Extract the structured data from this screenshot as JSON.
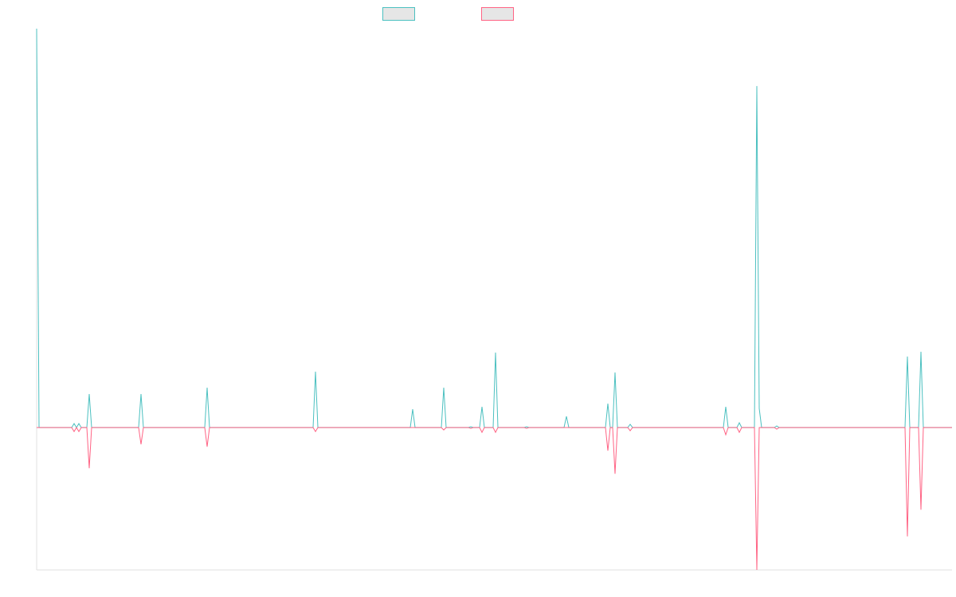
{
  "chart_data": {
    "type": "line",
    "x": [
      0,
      3,
      44,
      47,
      50,
      53,
      56,
      63,
      66,
      69,
      128,
      131,
      134,
      211,
      214,
      217,
      347,
      350,
      353,
      469,
      472,
      475,
      508,
      511,
      514,
      542,
      545,
      548,
      556,
      559,
      562,
      573,
      576,
      579,
      612,
      615,
      618,
      662,
      665,
      668,
      714,
      717,
      720,
      723,
      726,
      729,
      742,
      745,
      748,
      862,
      865,
      868,
      879,
      882,
      885,
      901,
      904,
      907,
      910,
      926,
      929,
      932,
      1090,
      1093,
      1096,
      1107,
      1110,
      1113,
      1149
    ],
    "series": [
      {
        "color": "#4bc0c0",
        "values": [
          100,
          0,
          0,
          1,
          0,
          1,
          0,
          0,
          8.4,
          0,
          0,
          8.4,
          0,
          0,
          10,
          0,
          0,
          14,
          0,
          0,
          4.6,
          0,
          0,
          10,
          0,
          0,
          0.2,
          0,
          0,
          5.2,
          0,
          0,
          18.8,
          0,
          0,
          0.2,
          0,
          0,
          2.8,
          0,
          0,
          6,
          0,
          0,
          13.8,
          0,
          0,
          0.8,
          0,
          0,
          5.2,
          0,
          0,
          1.2,
          0,
          0,
          85.6,
          4.8,
          0,
          0,
          0.4,
          0,
          0,
          17.8,
          0,
          0,
          19,
          0,
          0
        ]
      },
      {
        "color": "#ff6384",
        "values": [
          0,
          0,
          0,
          -1,
          0,
          -1,
          0,
          0,
          -10.2,
          0,
          0,
          -4.2,
          0,
          0,
          -4.8,
          0,
          0,
          -1,
          0,
          0,
          0,
          0,
          0,
          -0.6,
          0,
          0,
          -0.2,
          0,
          0,
          -1.2,
          0,
          0,
          -1.2,
          0,
          0,
          -0.2,
          0,
          0,
          0,
          0,
          0,
          -5.8,
          0,
          0,
          -11.6,
          0,
          0,
          -0.8,
          0,
          0,
          -1.8,
          0,
          0,
          -1.2,
          0,
          0,
          -35.7,
          0,
          0,
          0,
          -0.4,
          0,
          0,
          -27.3,
          0,
          0,
          -20.6,
          0,
          0
        ]
      }
    ],
    "xlim": [
      0,
      1149
    ],
    "ylim": [
      -35.7,
      100
    ]
  }
}
